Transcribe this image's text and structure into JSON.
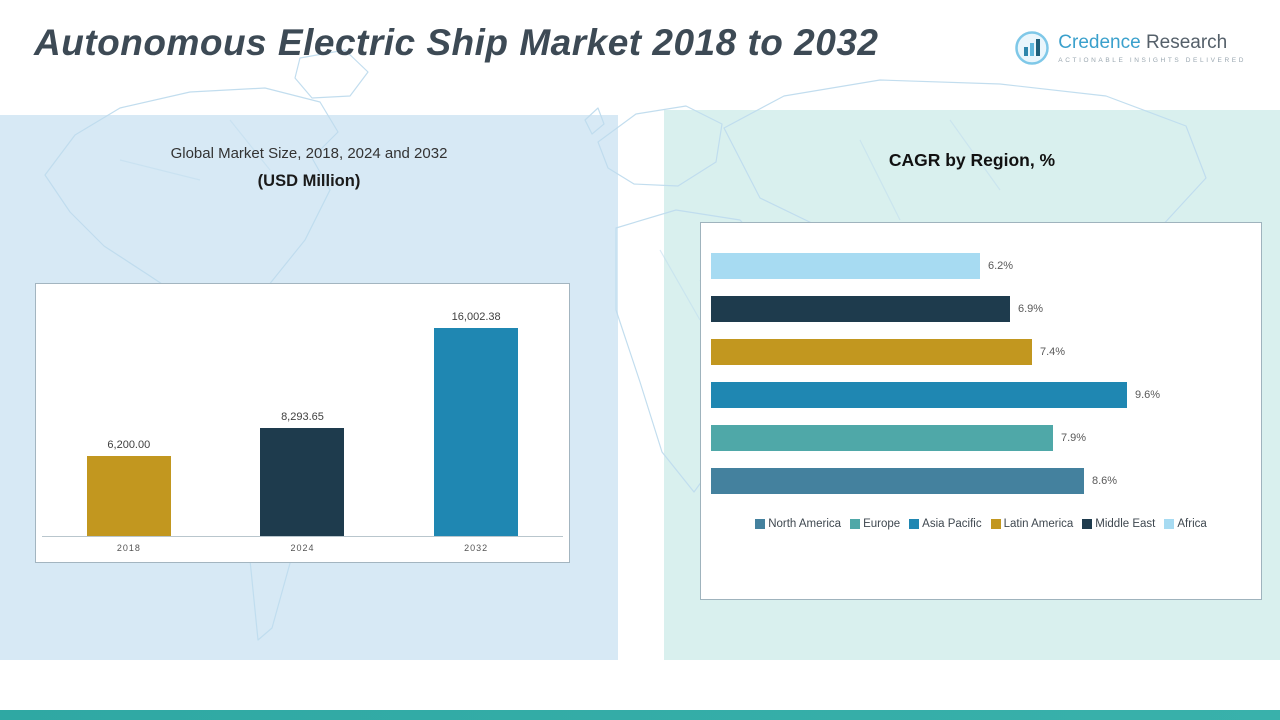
{
  "header": {
    "title": "Autonomous Electric Ship Market 2018 to 2032",
    "logo": {
      "brand_primary": "Credence",
      "brand_secondary": "Research",
      "tagline": "Actionable Insights Delivered"
    }
  },
  "left_panel": {
    "subtitle_line1": "Global Market Size, 2018, 2024 and 2032",
    "subtitle_line2": "(USD Million)"
  },
  "right_panel": {
    "title": "CAGR by Region, %"
  },
  "colors": {
    "accent_teal_footer": "#2fa8a3",
    "panel_left_bg": "#d7e9f5",
    "panel_right_bg": "#d9f0ee",
    "title_text": "#3d4a55",
    "map_line": "#bfdcee"
  },
  "chart_data": [
    {
      "type": "bar",
      "title": "Global Market Size, 2018, 2024 and 2032 (USD Million)",
      "categories": [
        "2018",
        "2024",
        "2032"
      ],
      "values": [
        6200.0,
        8293.65,
        16002.38
      ],
      "value_labels": [
        "6,200.00",
        "8,293.65",
        "16,002.38"
      ],
      "colors": [
        "#c2971f",
        "#1e3b4d",
        "#1f87b2"
      ],
      "xlabel": "",
      "ylabel": "",
      "ylim": [
        0,
        17500
      ],
      "grid": false,
      "legend_position": "none"
    },
    {
      "type": "bar",
      "orientation": "horizontal",
      "title": "CAGR by Region, %",
      "categories": [
        "Africa",
        "Middle East",
        "Latin America",
        "Asia Pacific",
        "Europe",
        "North America"
      ],
      "values": [
        6.2,
        6.9,
        7.4,
        9.6,
        7.9,
        8.6
      ],
      "value_labels": [
        "6.2%",
        "6.9%",
        "7.4%",
        "9.6%",
        "7.9%",
        "8.6%"
      ],
      "colors": [
        "#a7dbf2",
        "#1e3b4d",
        "#c2971f",
        "#1f87b2",
        "#4fa8a8",
        "#44819e"
      ],
      "xlabel": "",
      "ylabel": "",
      "xlim": [
        0,
        12
      ],
      "grid": false,
      "legend_position": "bottom",
      "legend": [
        {
          "label": "North America",
          "color": "#44819e"
        },
        {
          "label": "Europe",
          "color": "#4fa8a8"
        },
        {
          "label": "Asia Pacific",
          "color": "#1f87b2"
        },
        {
          "label": "Latin America",
          "color": "#c2971f"
        },
        {
          "label": "Middle East",
          "color": "#1e3b4d"
        },
        {
          "label": "Africa",
          "color": "#a7dbf2"
        }
      ]
    }
  ]
}
